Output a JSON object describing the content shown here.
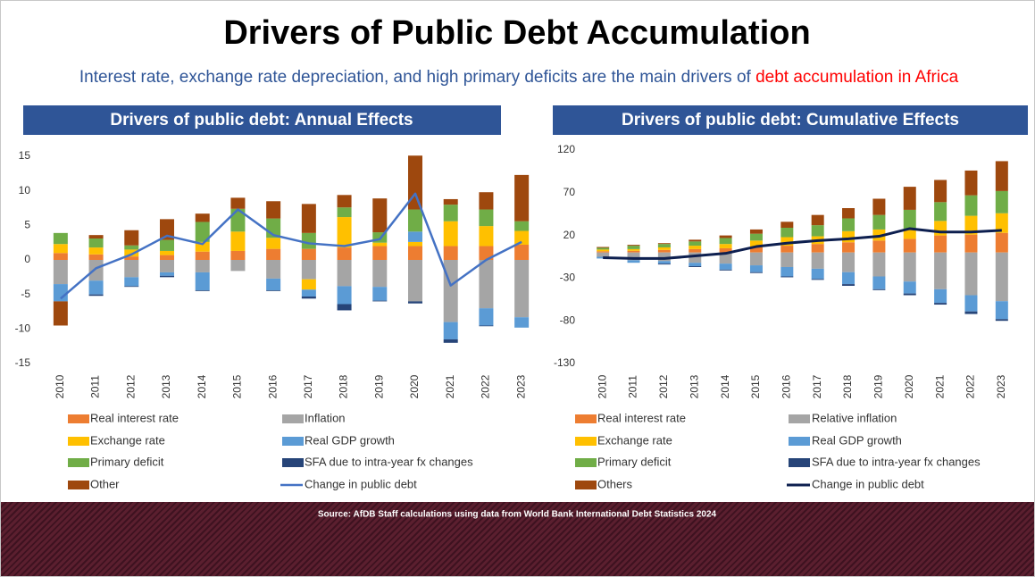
{
  "title": "Drivers of Public Debt Accumulation",
  "subtitle": {
    "text": "Interest rate, exchange rate depreciation, and high primary deficits are the main drivers of",
    "highlight": "debt accumulation in Africa"
  },
  "source": "Source: AfDB Staff calculations using data from World Bank International Debt Statistics 2024",
  "chart_data": [
    {
      "type": "bar",
      "stacked": true,
      "title": "Drivers of public debt: Annual Effects",
      "categories": [
        "2010",
        "2011",
        "2012",
        "2013",
        "2014",
        "2015",
        "2016",
        "2017",
        "2018",
        "2019",
        "2020",
        "2021",
        "2022",
        "2023"
      ],
      "ylim": [
        -15,
        15
      ],
      "yticks": [
        -15,
        -10,
        -5,
        0,
        5,
        10,
        15
      ],
      "series": [
        {
          "name": "Real interest rate",
          "color": "#ED7D31",
          "values": [
            1,
            0.8,
            0.5,
            0.7,
            1.2,
            1.3,
            1.6,
            1.6,
            1.8,
            2,
            2,
            2,
            2,
            2.2
          ]
        },
        {
          "name": "Inflation",
          "color": "#A5A5A5",
          "values": [
            -3.5,
            -3,
            -2.5,
            -1.8,
            -1.8,
            -1.6,
            -2.7,
            -2.8,
            -3.8,
            -3.9,
            -6,
            -9,
            -7,
            -8.3
          ]
        },
        {
          "name": "Exchange rate",
          "color": "#FFC000",
          "values": [
            1.3,
            1,
            1,
            0.6,
            1.4,
            2.8,
            1.6,
            -1.5,
            4.4,
            0.5,
            0.6,
            3.6,
            2.9,
            2
          ]
        },
        {
          "name": "Real GDP growth",
          "color": "#5B9BD5",
          "values": [
            -2.5,
            -2,
            -1.3,
            -0.5,
            -2.6,
            0,
            -1.7,
            -1,
            -2.6,
            -2,
            1.5,
            -2.5,
            -2.5,
            -1.5
          ]
        },
        {
          "name": "Primary deficit",
          "color": "#70AD47",
          "values": [
            1.6,
            1.3,
            0.6,
            1.6,
            2.9,
            3.3,
            2.8,
            2.3,
            1.4,
            1.5,
            3.2,
            2.4,
            2.4,
            1.4
          ]
        },
        {
          "name": "SFA due to intra-year fx changes",
          "color": "#264478",
          "values": [
            0,
            -0.2,
            -0.1,
            -0.2,
            -0.1,
            0,
            -0.1,
            -0.3,
            -0.9,
            -0.1,
            -0.3,
            -0.5,
            -0.1,
            0
          ]
        },
        {
          "name": "Other",
          "color": "#9E480E",
          "values": [
            -3.5,
            0.5,
            2.2,
            3,
            1.2,
            1.6,
            2.5,
            4.2,
            1.8,
            4.9,
            7.8,
            0.8,
            2.5,
            6.7
          ]
        },
        {
          "name": "Change in public debt",
          "type": "line",
          "color": "#4472C4",
          "values": [
            -5.6,
            -1.2,
            0.8,
            3.5,
            2.3,
            7.3,
            3.6,
            2.4,
            2,
            3,
            9.6,
            -3.7,
            0,
            2.6
          ]
        }
      ]
    },
    {
      "type": "bar",
      "stacked": true,
      "title": "Drivers of public debt: Cumulative Effects",
      "categories": [
        "2010",
        "2011",
        "2012",
        "2013",
        "2014",
        "2015",
        "2016",
        "2017",
        "2018",
        "2019",
        "2020",
        "2021",
        "2022",
        "2023"
      ],
      "ylim": [
        -130,
        120
      ],
      "yticks": [
        -130,
        -80,
        -30,
        20,
        70,
        120
      ],
      "series": [
        {
          "name": "Real interest rate",
          "color": "#ED7D31",
          "values": [
            1.5,
            2,
            3,
            4,
            5,
            6,
            8,
            10,
            12,
            14,
            16,
            20,
            21,
            23
          ]
        },
        {
          "name": "Relative inflation",
          "color": "#A5A5A5",
          "values": [
            -5,
            -9,
            -10,
            -12,
            -13,
            -15,
            -17,
            -19,
            -23,
            -28,
            -34,
            -43,
            -50,
            -57
          ]
        },
        {
          "name": "Exchange rate",
          "color": "#FFC000",
          "values": [
            2,
            2,
            3,
            4,
            5,
            8,
            10,
            9,
            13,
            13,
            12,
            17,
            22,
            23
          ]
        },
        {
          "name": "Real GDP growth",
          "color": "#5B9BD5",
          "values": [
            -2,
            -3,
            -3,
            -4,
            -7,
            -8,
            -11,
            -12,
            -14,
            -15,
            -14,
            -16,
            -19,
            -21
          ]
        },
        {
          "name": "Primary deficit",
          "color": "#70AD47",
          "values": [
            2,
            4,
            4,
            5,
            7,
            8,
            11,
            13,
            15,
            17,
            22,
            22,
            24,
            26
          ]
        },
        {
          "name": "SFA due to intra-year fx changes",
          "color": "#264478",
          "values": [
            0,
            0,
            -1,
            -1,
            -1,
            -1,
            -1,
            -1,
            -2,
            -1,
            -2,
            -2,
            -3,
            -2
          ]
        },
        {
          "name": "Others",
          "color": "#9E480E",
          "values": [
            1,
            1,
            1,
            2,
            3,
            5,
            7,
            12,
            12,
            19,
            27,
            26,
            29,
            35
          ]
        },
        {
          "name": "Change in public debt",
          "type": "line",
          "color": "#0D1F4F",
          "values": [
            -6,
            -7,
            -7,
            -4,
            -1,
            7,
            11,
            14,
            16,
            19,
            28,
            24,
            24,
            26
          ]
        }
      ]
    }
  ]
}
